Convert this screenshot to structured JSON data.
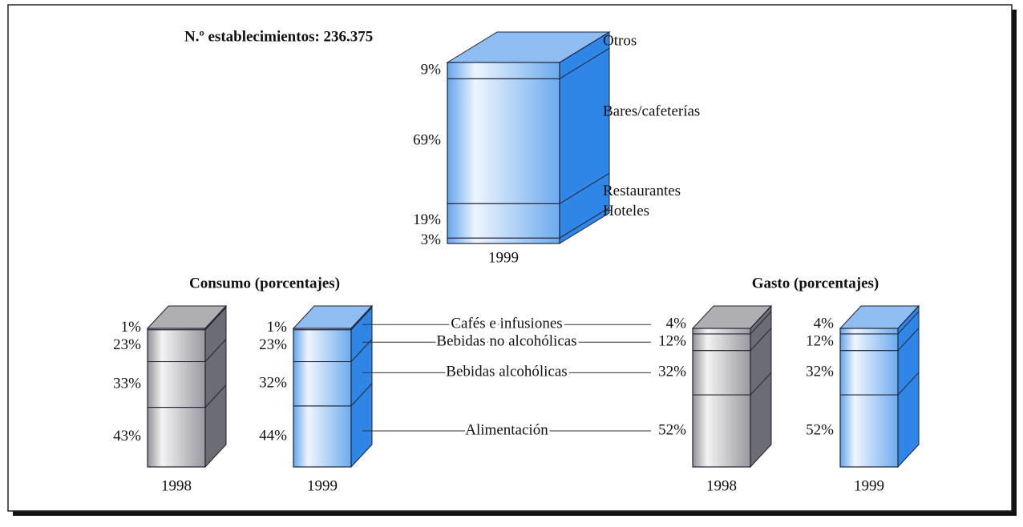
{
  "chart_data": [
    {
      "type": "stacked-bar3d",
      "title": "N.º establecimientos: 236.375",
      "categories": [
        "1999"
      ],
      "colors": [
        "#2f86e6"
      ],
      "series": [
        {
          "name": "Hoteles",
          "values": [
            3
          ],
          "value_labels": [
            "3%"
          ]
        },
        {
          "name": "Restaurantes",
          "values": [
            19
          ],
          "value_labels": [
            "19%"
          ]
        },
        {
          "name": "Bares/cafeterías",
          "values": [
            69
          ],
          "value_labels": [
            "69%"
          ]
        },
        {
          "name": "Otros",
          "values": [
            9
          ],
          "value_labels": [
            "9%"
          ]
        }
      ]
    },
    {
      "type": "stacked-bar3d",
      "title": "Consumo (porcentajes)",
      "categories": [
        "1998",
        "1999"
      ],
      "colors": [
        "#6c6c74",
        "#2f86e6"
      ],
      "series": [
        {
          "name": "Alimentación",
          "values": [
            43,
            44
          ],
          "value_labels": [
            "43%",
            "44%"
          ]
        },
        {
          "name": "Bebidas alcohólicas",
          "values": [
            33,
            32
          ],
          "value_labels": [
            "33%",
            "32%"
          ]
        },
        {
          "name": "Bebidas no alcohólicas",
          "values": [
            23,
            23
          ],
          "value_labels": [
            "23%",
            "23%"
          ]
        },
        {
          "name": "Cafés e infusiones",
          "values": [
            1,
            1
          ],
          "value_labels": [
            "1%",
            "1%"
          ]
        }
      ]
    },
    {
      "type": "stacked-bar3d",
      "title": "Gasto (porcentajes)",
      "categories": [
        "1998",
        "1999"
      ],
      "colors": [
        "#6c6c74",
        "#2f86e6"
      ],
      "series": [
        {
          "values": [
            52,
            52
          ],
          "value_labels": [
            "52%",
            "52%"
          ]
        },
        {
          "values": [
            32,
            32
          ],
          "value_labels": [
            "32%",
            "32%"
          ]
        },
        {
          "values": [
            12,
            12
          ],
          "value_labels": [
            "12%",
            "12%"
          ]
        },
        {
          "values": [
            4,
            4
          ],
          "value_labels": [
            "4%",
            "4%"
          ]
        }
      ]
    }
  ]
}
